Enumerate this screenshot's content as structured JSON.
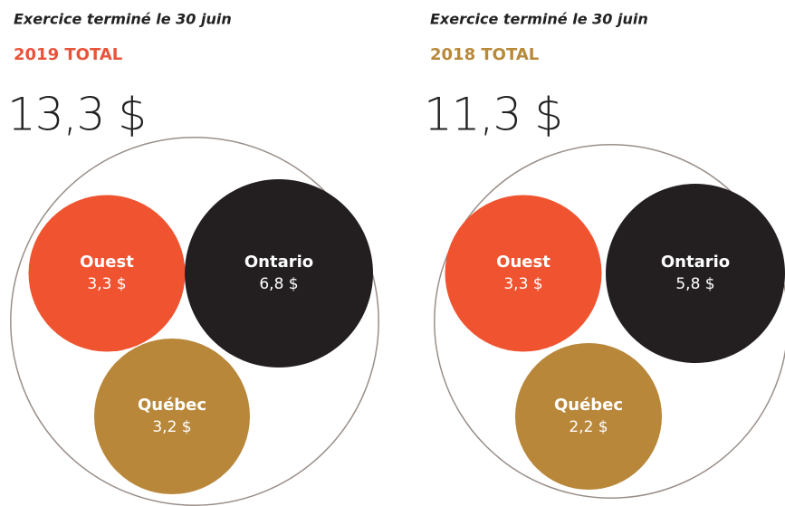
{
  "chart_data": [
    {
      "type": "bubble",
      "subtitle": "Exercice terminé le 30 juin",
      "title": "2019 TOTAL",
      "title_color": "#e8543a",
      "total": 13.3,
      "total_label": "13,3 $",
      "categories": [
        "Ouest",
        "Ontario",
        "Québec"
      ],
      "values": [
        3.3,
        6.8,
        3.2
      ],
      "value_labels": [
        "3,3 $",
        "6,8 $",
        "3,2 $"
      ],
      "colors": [
        "#f05330",
        "#231f20",
        "#b8873a"
      ]
    },
    {
      "type": "bubble",
      "subtitle": "Exercice terminé le 30 juin",
      "title": "2018 TOTAL",
      "title_color": "#b8893a",
      "total": 11.3,
      "total_label": "11,3 $",
      "categories": [
        "Ouest",
        "Ontario",
        "Québec"
      ],
      "values": [
        3.3,
        5.8,
        2.2
      ],
      "value_labels": [
        "3,3 $",
        "5,8 $",
        "2,2 $"
      ],
      "colors": [
        "#f05330",
        "#231f20",
        "#b8873a"
      ]
    }
  ]
}
